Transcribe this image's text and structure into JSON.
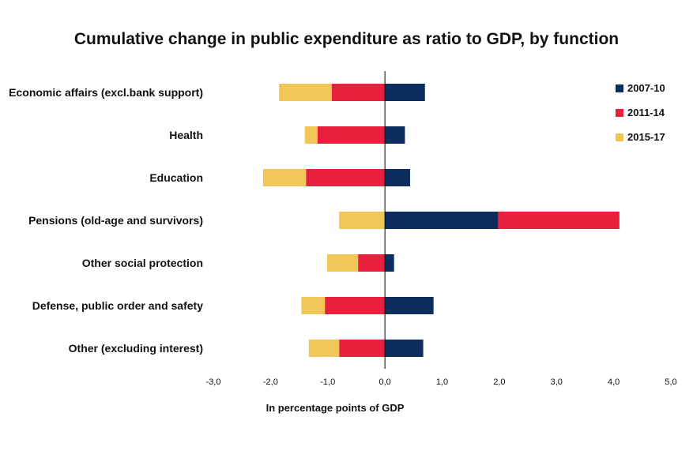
{
  "chart_data": {
    "type": "bar",
    "orientation": "horizontal",
    "stacked": true,
    "title": "Cumulative change in public expenditure as ratio to GDP, by function",
    "xlabel": "In percentage points of GDP",
    "ylabel": "",
    "xlim": [
      -3,
      5
    ],
    "xticks": [
      -3,
      -2,
      -1,
      0,
      1,
      2,
      3,
      4,
      5
    ],
    "xtick_labels": [
      "-3,0",
      "-2,0",
      "-1,0",
      "0,0",
      "1,0",
      "2,0",
      "3,0",
      "4,0",
      "5,0"
    ],
    "categories": [
      "Economic affairs (excl.bank support)",
      "Health",
      "Education",
      "Pensions (old-age and survivors)",
      "Other social protection",
      "Defense, public order and safety",
      "Other (excluding interest)"
    ],
    "series": [
      {
        "name": "2007-10",
        "color": "#0d2d5f",
        "values": [
          0.7,
          0.35,
          0.44,
          1.98,
          0.16,
          0.85,
          0.67
        ]
      },
      {
        "name": "2011-14",
        "color": "#e8203d",
        "values": [
          -0.93,
          -1.18,
          -1.38,
          2.12,
          -0.47,
          -1.05,
          -0.8
        ]
      },
      {
        "name": "2015-17",
        "color": "#f0c658",
        "values": [
          -0.92,
          -0.22,
          -0.75,
          -0.8,
          -0.54,
          -0.41,
          -0.53
        ]
      }
    ],
    "legend_position": "top-right",
    "grid": false
  }
}
